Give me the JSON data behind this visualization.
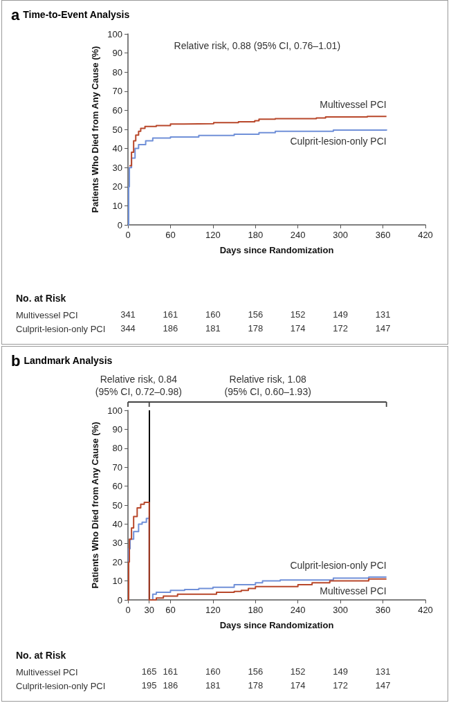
{
  "chart_data": [
    {
      "type": "step",
      "title": "a Time-to-Event Analysis",
      "xlabel": "Days since Randomization",
      "ylabel": "Patients Who Died from Any Cause (%)",
      "xlim": [
        0,
        420
      ],
      "xticks": [
        0,
        60,
        120,
        180,
        240,
        300,
        360,
        420
      ],
      "ylim": [
        0,
        100
      ],
      "yticks": [
        0,
        10,
        20,
        30,
        40,
        50,
        60,
        70,
        80,
        90,
        100
      ],
      "series": [
        {
          "name": "Multivessel PCI",
          "color": "#b8472a",
          "x": [
            2,
            5,
            8,
            11,
            15,
            18,
            24,
            40,
            60,
            79,
            121,
            156,
            179,
            185,
            208,
            266,
            279,
            338,
            365
          ],
          "values": [
            31,
            38,
            44,
            47,
            49,
            50.5,
            51.5,
            52,
            52.8,
            53,
            53.5,
            54,
            54.5,
            55.3,
            55.6,
            56,
            56.5,
            56.8,
            57
          ]
        },
        {
          "name": "Culprit-lesion-only PCI",
          "color": "#7090d8",
          "x": [
            0,
            1,
            2,
            5,
            10,
            15,
            25,
            35,
            60,
            100,
            150,
            185,
            208,
            290,
            365
          ],
          "values": [
            0,
            20,
            30,
            35,
            40,
            42,
            44,
            45.5,
            46,
            46.8,
            47.5,
            48.3,
            49,
            49.6,
            50
          ]
        }
      ],
      "annotations": [
        "Relative risk, 0.88 (95% CI, 0.76–1.01)",
        "No. at Risk",
        "Multivessel PCI",
        "341",
        "161",
        "160",
        "156",
        "152",
        "149",
        "131",
        "Culprit-lesion-only PCI",
        "344",
        "186",
        "181",
        "178",
        "174",
        "172",
        "147"
      ]
    },
    {
      "type": "step",
      "title": "b Landmark Analysis",
      "xlabel": "Days since Randomization",
      "ylabel": "Patients Who Died from Any Cause (%)",
      "xlim": [
        0,
        420
      ],
      "xticks": [
        0,
        30,
        60,
        120,
        180,
        240,
        300,
        360,
        420
      ],
      "ylim": [
        0,
        100
      ],
      "yticks": [
        0,
        10,
        20,
        30,
        40,
        50,
        60,
        70,
        80,
        90,
        100
      ],
      "series": [
        {
          "name": "Multivessel PCI",
          "color": "#b8472a",
          "x": [
            0,
            1,
            2,
            5,
            8,
            13,
            18,
            23,
            30,
            30,
            40,
            50,
            70,
            125,
            150,
            160,
            170,
            180,
            240,
            260,
            285,
            340,
            365
          ],
          "values": [
            0,
            20,
            32,
            38,
            44,
            48.5,
            50.5,
            51.5,
            51.5,
            0,
            1,
            2,
            3,
            4,
            4.5,
            5,
            6,
            7,
            8,
            9,
            10,
            11,
            11
          ]
        },
        {
          "name": "Culprit-lesion-only PCI",
          "color": "#7090d8",
          "x": [
            0,
            1,
            3,
            8,
            15,
            20,
            26,
            30,
            30,
            35,
            40,
            60,
            80,
            100,
            120,
            150,
            180,
            190,
            215,
            290,
            340,
            365
          ],
          "values": [
            0,
            27,
            32,
            36,
            40,
            41,
            43,
            44,
            0,
            3,
            4,
            5,
            5.5,
            6,
            6.7,
            8,
            9,
            10,
            10.5,
            11.5,
            12,
            12
          ]
        }
      ],
      "ref_lines": [
        {
          "axis": "x",
          "value": 30,
          "color": "#000000"
        }
      ],
      "annotations": [
        "Relative risk, 0.84\n(95% CI, 0.72–0.98)",
        "Relative risk, 1.08\n(95% CI, 0.60–1.93)",
        "No. at Risk",
        "Multivessel PCI",
        "165",
        "161",
        "160",
        "156",
        "152",
        "149",
        "131",
        "Culprit-lesion-only PCI",
        "195",
        "186",
        "181",
        "178",
        "174",
        "172",
        "147"
      ]
    }
  ]
}
